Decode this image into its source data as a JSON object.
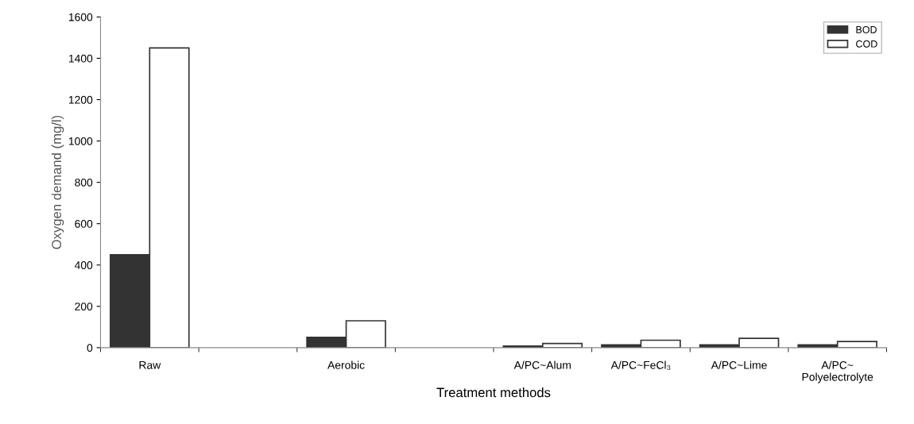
{
  "chart_data": {
    "type": "bar",
    "xlabel": "Treatment methods",
    "ylabel": "Oxygen demand (mg/l)",
    "categories": [
      "Raw",
      null,
      "Aerobic",
      null,
      "A/PC~Alum",
      "A/PC~FeCl₃",
      "A/PC~Lime",
      "A/PC~\nPolyelectrolyte"
    ],
    "series": [
      {
        "name": "BOD",
        "color": "#333333",
        "values": [
          450,
          null,
          50,
          null,
          8,
          14,
          14,
          14
        ]
      },
      {
        "name": "COD",
        "color": "#ffffff",
        "values": [
          1450,
          null,
          130,
          null,
          20,
          36,
          45,
          30
        ]
      }
    ],
    "ylim": [
      0,
      1600
    ],
    "yticks": [
      0,
      200,
      400,
      600,
      800,
      1000,
      1200,
      1400,
      1600
    ],
    "legend": "top right",
    "grid": false
  }
}
